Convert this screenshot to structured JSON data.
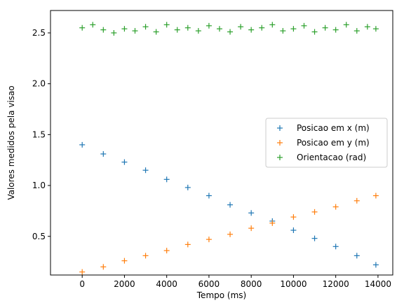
{
  "chart_data": {
    "type": "scatter",
    "xlabel": "Tempo (ms)",
    "ylabel": "Valores medidos pela visao",
    "xlim": [
      -1500,
      14700
    ],
    "ylim": [
      0.12,
      2.72
    ],
    "xticks": [
      0,
      2000,
      4000,
      6000,
      8000,
      10000,
      12000,
      14000
    ],
    "xtick_labels": [
      "0",
      "2000",
      "4000",
      "6000",
      "8000",
      "10000",
      "12000",
      "14000"
    ],
    "yticks": [
      0.5,
      1.0,
      1.5,
      2.0,
      2.5
    ],
    "ytick_labels": [
      "0.5",
      "1.0",
      "1.5",
      "2.0",
      "2.5"
    ],
    "grid": false,
    "legend_position": "center-right",
    "marker": "+",
    "series": [
      {
        "name": "Posicao em x (m)",
        "color": "#1f77b4",
        "x": [
          0,
          1000,
          2000,
          3000,
          4000,
          5000,
          6000,
          7000,
          8000,
          9000,
          10000,
          11000,
          12000,
          13000,
          13900
        ],
        "y": [
          1.4,
          1.31,
          1.23,
          1.15,
          1.06,
          0.98,
          0.9,
          0.81,
          0.73,
          0.65,
          0.56,
          0.48,
          0.4,
          0.31,
          0.22
        ]
      },
      {
        "name": "Posicao em y (m)",
        "color": "#ff7f0e",
        "x": [
          0,
          1000,
          2000,
          3000,
          4000,
          5000,
          6000,
          7000,
          8000,
          9000,
          10000,
          11000,
          12000,
          13000,
          13900
        ],
        "y": [
          0.15,
          0.2,
          0.26,
          0.31,
          0.36,
          0.42,
          0.47,
          0.52,
          0.58,
          0.63,
          0.69,
          0.74,
          0.79,
          0.85,
          0.9
        ]
      },
      {
        "name": "Orientacao (rad)",
        "color": "#2ca02c",
        "x": [
          0,
          500,
          1000,
          1500,
          2000,
          2500,
          3000,
          3500,
          4000,
          4500,
          5000,
          5500,
          6000,
          6500,
          7000,
          7500,
          8000,
          8500,
          9000,
          9500,
          10000,
          10500,
          11000,
          11500,
          12000,
          12500,
          13000,
          13500,
          13900
        ],
        "y": [
          2.55,
          2.58,
          2.53,
          2.5,
          2.54,
          2.52,
          2.56,
          2.51,
          2.58,
          2.53,
          2.55,
          2.52,
          2.57,
          2.54,
          2.51,
          2.56,
          2.53,
          2.55,
          2.58,
          2.52,
          2.54,
          2.57,
          2.51,
          2.55,
          2.53,
          2.58,
          2.52,
          2.56,
          2.54
        ]
      }
    ]
  }
}
